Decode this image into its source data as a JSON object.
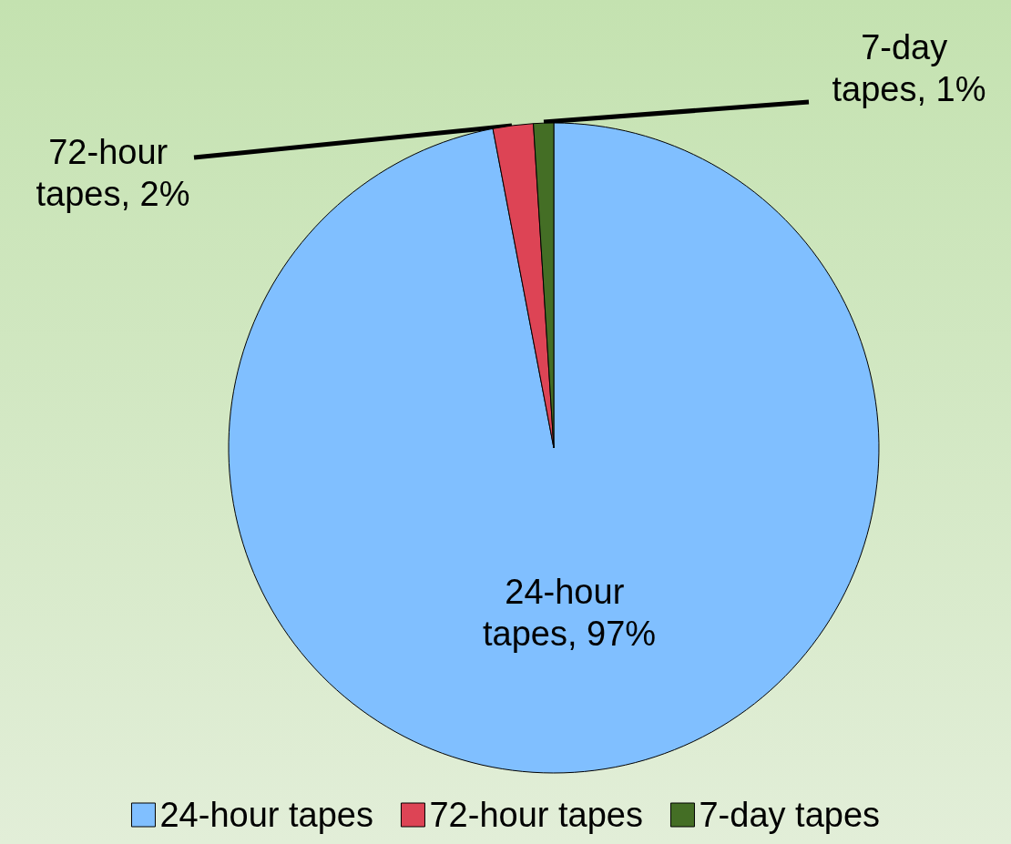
{
  "chart_data": {
    "type": "pie",
    "categories": [
      "24-hour tapes",
      "72-hour tapes",
      "7-day tapes"
    ],
    "values": [
      97,
      2,
      1
    ],
    "value_labels": [
      "24-hour tapes, 97%",
      "72-hour tapes, 2%",
      "7-day tapes, 1%"
    ],
    "colors": [
      "#80bfff",
      "#dd4455",
      "#446e25"
    ],
    "legend": "bottom"
  }
}
